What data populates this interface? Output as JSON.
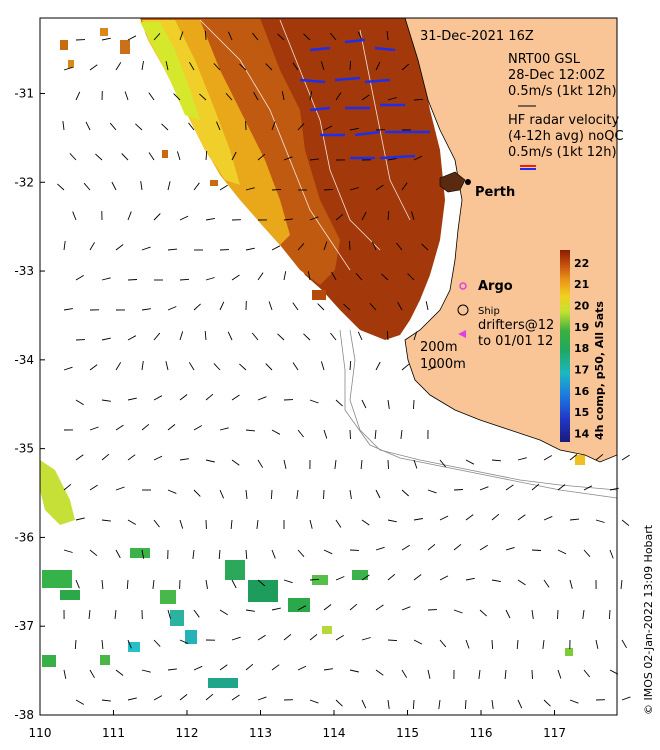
{
  "map": {
    "timestamp": "31-Dec-2021 16Z",
    "legend": {
      "wind_title": "NRT00 GSL",
      "wind_time": "28-Dec 12:00Z",
      "wind_scale": "0.5m/s (1kt 12h)",
      "hf_title": "HF radar velocity",
      "hf_subtitle": "(4-12h avg) noQC",
      "hf_scale": "0.5m/s (1kt 12h)",
      "argo": "Argo",
      "ship": "Ship",
      "drifters_1": "drifters@12",
      "drifters_2": "to 01/01 12",
      "contour_200": "200m",
      "contour_1000": "1000m"
    },
    "city": "Perth",
    "colorbar": {
      "title": "4h comp, p50, All Sats",
      "ticks": [
        "22",
        "21",
        "20",
        "19",
        "18",
        "17",
        "16",
        "15",
        "14"
      ],
      "range": [
        13.6,
        22.6
      ]
    },
    "axes": {
      "lon_ticks": [
        "110",
        "111",
        "112",
        "113",
        "114",
        "115",
        "116",
        "117"
      ],
      "lat_ticks": [
        "-31",
        "-32",
        "-33",
        "-34",
        "-35",
        "-36",
        "-37",
        "-38"
      ],
      "lon_range": [
        110,
        117.85
      ],
      "lat_range": [
        -38,
        -30.15
      ]
    },
    "credit": "© IMOS 02-Jan-2022 13:09 Hobart",
    "colors": {
      "land": "#f9c597",
      "warm": "#a62a05",
      "hf_arrow": "#1f2ee8",
      "argo": "#e040e0",
      "drifter": "#e040e0"
    }
  }
}
